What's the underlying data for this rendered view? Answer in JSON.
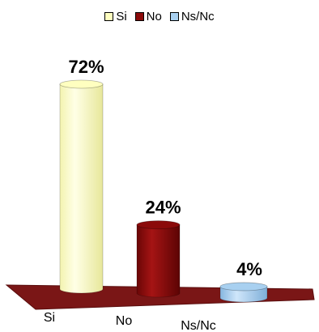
{
  "chart_data": {
    "type": "bar",
    "title": "",
    "xlabel": "",
    "ylabel": "",
    "ylim": [
      0,
      80
    ],
    "categories": [
      "Si",
      "No",
      "Ns/Nc"
    ],
    "values": [
      72,
      24,
      4
    ],
    "value_labels": [
      "72%",
      "24%",
      "4%"
    ],
    "colors": [
      "#FFFFC0",
      "#8B0A0A",
      "#A8D0F0"
    ],
    "legend_position": "top-center",
    "grid": false
  }
}
